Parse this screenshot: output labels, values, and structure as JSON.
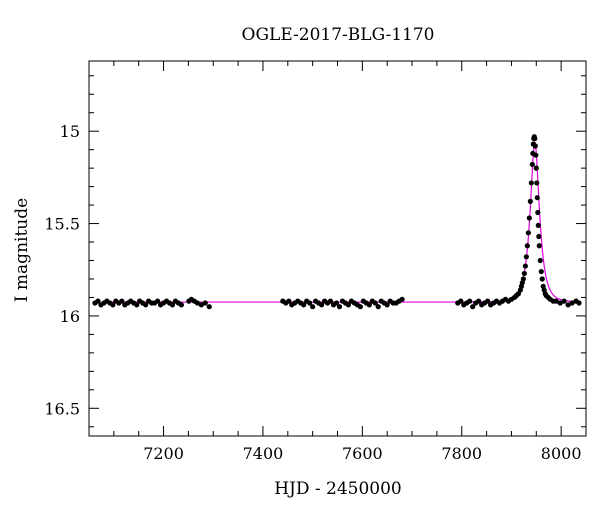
{
  "chart_data": {
    "type": "scatter",
    "title": "OGLE-2017-BLG-1170",
    "xlabel": "HJD - 2450000",
    "ylabel": "I magnitude",
    "xlim": [
      7050,
      8050
    ],
    "ylim": [
      16.65,
      14.62
    ],
    "y_inverted": true,
    "xticks": [
      7200,
      7400,
      7600,
      7800,
      8000
    ],
    "yticks": [
      15,
      15.5,
      16,
      16.5
    ],
    "xtick_labels": [
      "7200",
      "7400",
      "7600",
      "7800",
      "8000"
    ],
    "ytick_labels": [
      "15",
      "15.5",
      "16",
      "16.5"
    ],
    "x_minor_step": 50,
    "y_minor_step": 0.1,
    "grid": false,
    "colors": {
      "points": "#000000",
      "model": "#e000e0"
    },
    "model": {
      "name": "",
      "baseline": 15.925,
      "peak_time": 7947,
      "peak_mag": 15.06,
      "tE": 16
    },
    "series": [
      {
        "name": "",
        "x": [
          7062,
          7068,
          7074,
          7080,
          7086,
          7092,
          7098,
          7104,
          7110,
          7116,
          7122,
          7128,
          7134,
          7140,
          7146,
          7152,
          7158,
          7164,
          7170,
          7176,
          7182,
          7188,
          7194,
          7200,
          7206,
          7212,
          7218,
          7224,
          7230,
          7236,
          7251,
          7256,
          7262,
          7268,
          7276,
          7284,
          7292,
          7440,
          7446,
          7452,
          7458,
          7464,
          7470,
          7476,
          7482,
          7488,
          7494,
          7500,
          7506,
          7512,
          7518,
          7524,
          7530,
          7536,
          7542,
          7548,
          7554,
          7560,
          7566,
          7572,
          7578,
          7584,
          7590,
          7596,
          7602,
          7608,
          7614,
          7620,
          7626,
          7632,
          7638,
          7644,
          7650,
          7656,
          7662,
          7668,
          7674,
          7680,
          7792,
          7798,
          7804,
          7810,
          7816,
          7822,
          7828,
          7834,
          7840,
          7846,
          7852,
          7858,
          7864,
          7870,
          7876,
          7882,
          7888,
          7894,
          7900,
          7906,
          7910,
          7914,
          7918,
          7920,
          7922,
          7924,
          7926,
          7928,
          7930,
          7932,
          7934,
          7936,
          7938,
          7940,
          7942,
          7943,
          7944,
          7945,
          7946,
          7947,
          7948,
          7949,
          7950,
          7951,
          7952,
          7953,
          7954,
          7955,
          7956,
          7958,
          7960,
          7962,
          7964,
          7966,
          7968,
          7970,
          7974,
          7978,
          7984,
          7990,
          7998,
          8006,
          8014,
          8022,
          8030,
          8036
        ],
        "y": [
          15.93,
          15.92,
          15.94,
          15.93,
          15.92,
          15.93,
          15.94,
          15.92,
          15.93,
          15.92,
          15.94,
          15.93,
          15.92,
          15.93,
          15.94,
          15.92,
          15.93,
          15.94,
          15.92,
          15.93,
          15.93,
          15.92,
          15.94,
          15.93,
          15.92,
          15.93,
          15.94,
          15.92,
          15.93,
          15.94,
          15.92,
          15.91,
          15.92,
          15.93,
          15.94,
          15.93,
          15.95,
          15.92,
          15.93,
          15.92,
          15.94,
          15.93,
          15.92,
          15.93,
          15.94,
          15.92,
          15.93,
          15.95,
          15.92,
          15.93,
          15.94,
          15.92,
          15.93,
          15.92,
          15.94,
          15.93,
          15.95,
          15.92,
          15.93,
          15.94,
          15.92,
          15.93,
          15.94,
          15.95,
          15.92,
          15.93,
          15.94,
          15.92,
          15.93,
          15.95,
          15.92,
          15.93,
          15.94,
          15.92,
          15.93,
          15.93,
          15.92,
          15.91,
          15.93,
          15.92,
          15.94,
          15.93,
          15.92,
          15.95,
          15.93,
          15.92,
          15.94,
          15.93,
          15.92,
          15.94,
          15.93,
          15.92,
          15.93,
          15.92,
          15.91,
          15.92,
          15.91,
          15.9,
          15.89,
          15.88,
          15.86,
          15.84,
          15.82,
          15.8,
          15.77,
          15.73,
          15.68,
          15.62,
          15.55,
          15.47,
          15.38,
          15.28,
          15.18,
          15.12,
          15.07,
          15.04,
          15.03,
          15.04,
          15.08,
          15.13,
          15.2,
          15.28,
          15.36,
          15.44,
          15.51,
          15.57,
          15.62,
          15.7,
          15.76,
          15.8,
          15.84,
          15.86,
          15.88,
          15.89,
          15.9,
          15.91,
          15.92,
          15.92,
          15.93,
          15.92,
          15.94,
          15.93,
          15.92,
          15.93
        ]
      }
    ]
  }
}
